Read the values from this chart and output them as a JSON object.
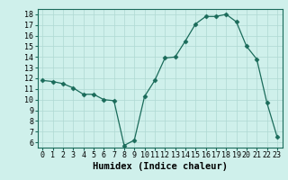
{
  "xlabel": "Humidex (Indice chaleur)",
  "x": [
    0,
    1,
    2,
    3,
    4,
    5,
    6,
    7,
    8,
    9,
    10,
    11,
    12,
    13,
    14,
    15,
    16,
    17,
    18,
    19,
    20,
    21,
    22,
    23
  ],
  "y": [
    11.8,
    11.7,
    11.5,
    11.1,
    10.5,
    10.5,
    10.0,
    9.9,
    5.7,
    6.2,
    10.3,
    11.8,
    13.9,
    14.0,
    15.5,
    17.1,
    17.8,
    17.8,
    18.0,
    17.3,
    15.0,
    13.8,
    9.7,
    6.5
  ],
  "line_color": "#1a6b5a",
  "marker": "D",
  "marker_size": 2.5,
  "bg_color": "#cff0eb",
  "grid_color": "#aed8d2",
  "xlim": [
    -0.5,
    23.5
  ],
  "ylim": [
    5.5,
    18.5
  ],
  "yticks": [
    6,
    7,
    8,
    9,
    10,
    11,
    12,
    13,
    14,
    15,
    16,
    17,
    18
  ],
  "xticks": [
    0,
    1,
    2,
    3,
    4,
    5,
    6,
    7,
    8,
    9,
    10,
    11,
    12,
    13,
    14,
    15,
    16,
    17,
    18,
    19,
    20,
    21,
    22,
    23
  ],
  "tick_fontsize": 6,
  "xlabel_fontsize": 7.5
}
